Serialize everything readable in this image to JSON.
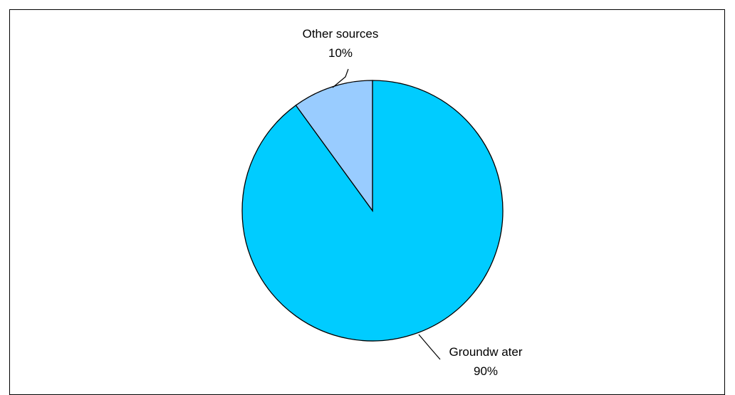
{
  "chart_data": {
    "type": "pie",
    "title": "",
    "slices": [
      {
        "label": "Groundw ater",
        "pct_label": "90%",
        "value": 90,
        "color": "#00CCFF"
      },
      {
        "label": "Other sources",
        "pct_label": "10%",
        "value": 10,
        "color": "#99CCFF"
      }
    ],
    "start_angle_deg": 0,
    "direction": "clockwise",
    "edge_color": "#000000"
  }
}
